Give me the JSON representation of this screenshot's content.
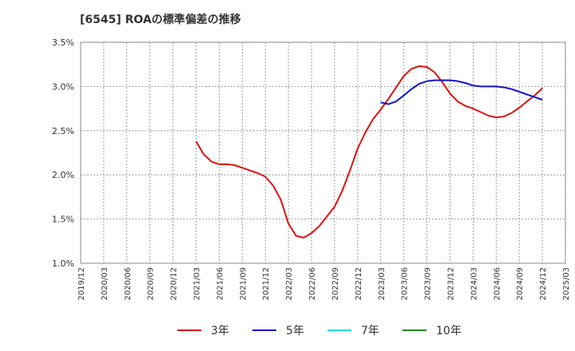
{
  "chart_data": {
    "type": "line",
    "title": "[6545]  ROAの標準偏差の推移",
    "xlabel": "",
    "ylabel": "",
    "ylim": [
      1.0,
      3.5
    ],
    "x_ticks": [
      "2019/12",
      "2020/03",
      "2020/06",
      "2020/09",
      "2020/12",
      "2021/03",
      "2021/06",
      "2021/09",
      "2021/12",
      "2022/03",
      "2022/06",
      "2022/09",
      "2022/12",
      "2023/03",
      "2023/06",
      "2023/09",
      "2023/12",
      "2024/03",
      "2024/06",
      "2024/09",
      "2024/12",
      "2025/03"
    ],
    "y_ticks": [
      "1.0%",
      "1.5%",
      "2.0%",
      "2.5%",
      "3.0%",
      "3.5%"
    ],
    "y_tick_values": [
      1.0,
      1.5,
      2.0,
      2.5,
      3.0,
      3.5
    ],
    "x_range": [
      "2019/12",
      "2025/03"
    ],
    "grid": true,
    "legend_position": "bottom",
    "series": [
      {
        "name": "3年",
        "color": "#dd1111",
        "points": [
          [
            "2021/03",
            2.38
          ],
          [
            "2021/04",
            2.23
          ],
          [
            "2021/05",
            2.15
          ],
          [
            "2021/06",
            2.12
          ],
          [
            "2021/07",
            2.12
          ],
          [
            "2021/08",
            2.11
          ],
          [
            "2021/09",
            2.08
          ],
          [
            "2021/10",
            2.05
          ],
          [
            "2021/11",
            2.02
          ],
          [
            "2021/12",
            1.98
          ],
          [
            "2022/01",
            1.88
          ],
          [
            "2022/02",
            1.72
          ],
          [
            "2022/03",
            1.45
          ],
          [
            "2022/04",
            1.31
          ],
          [
            "2022/05",
            1.29
          ],
          [
            "2022/06",
            1.34
          ],
          [
            "2022/07",
            1.42
          ],
          [
            "2022/08",
            1.53
          ],
          [
            "2022/09",
            1.64
          ],
          [
            "2022/10",
            1.82
          ],
          [
            "2022/11",
            2.05
          ],
          [
            "2022/12",
            2.3
          ],
          [
            "2023/01",
            2.48
          ],
          [
            "2023/02",
            2.63
          ],
          [
            "2023/03",
            2.74
          ],
          [
            "2023/04",
            2.86
          ],
          [
            "2023/05",
            2.99
          ],
          [
            "2023/06",
            3.12
          ],
          [
            "2023/07",
            3.2
          ],
          [
            "2023/08",
            3.23
          ],
          [
            "2023/09",
            3.22
          ],
          [
            "2023/10",
            3.16
          ],
          [
            "2023/11",
            3.05
          ],
          [
            "2023/12",
            2.92
          ],
          [
            "2024/01",
            2.83
          ],
          [
            "2024/02",
            2.78
          ],
          [
            "2024/03",
            2.75
          ],
          [
            "2024/04",
            2.71
          ],
          [
            "2024/05",
            2.67
          ],
          [
            "2024/06",
            2.65
          ],
          [
            "2024/07",
            2.66
          ],
          [
            "2024/08",
            2.7
          ],
          [
            "2024/09",
            2.76
          ],
          [
            "2024/10",
            2.83
          ],
          [
            "2024/11",
            2.9
          ],
          [
            "2024/12",
            2.98
          ]
        ]
      },
      {
        "name": "5年",
        "color": "#1111cc",
        "points": [
          [
            "2023/03",
            2.82
          ],
          [
            "2023/04",
            2.8
          ],
          [
            "2023/05",
            2.83
          ],
          [
            "2023/06",
            2.9
          ],
          [
            "2023/07",
            2.97
          ],
          [
            "2023/08",
            3.03
          ],
          [
            "2023/09",
            3.06
          ],
          [
            "2023/10",
            3.07
          ],
          [
            "2023/11",
            3.07
          ],
          [
            "2023/12",
            3.07
          ],
          [
            "2024/01",
            3.06
          ],
          [
            "2024/02",
            3.04
          ],
          [
            "2024/03",
            3.01
          ],
          [
            "2024/04",
            3.0
          ],
          [
            "2024/05",
            3.0
          ],
          [
            "2024/06",
            3.0
          ],
          [
            "2024/07",
            2.99
          ],
          [
            "2024/08",
            2.97
          ],
          [
            "2024/09",
            2.94
          ],
          [
            "2024/10",
            2.91
          ],
          [
            "2024/11",
            2.88
          ],
          [
            "2024/12",
            2.85
          ]
        ]
      },
      {
        "name": "7年",
        "color": "#22dddd",
        "points": []
      },
      {
        "name": "10年",
        "color": "#228822",
        "points": []
      }
    ]
  }
}
